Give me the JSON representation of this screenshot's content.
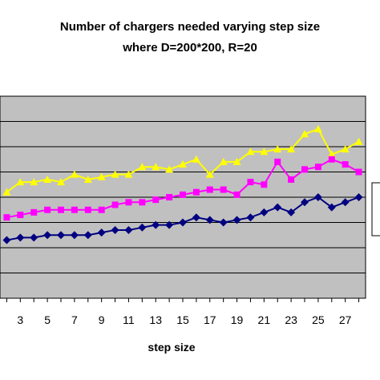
{
  "chart_data": {
    "type": "line",
    "title_line1": "Number of chargers needed varying step size",
    "title_line2": "where D=200*200, R=20",
    "xlabel": "step size",
    "ylabel": "",
    "x": [
      2,
      3,
      4,
      5,
      6,
      7,
      8,
      9,
      10,
      11,
      12,
      13,
      14,
      15,
      16,
      17,
      18,
      19,
      20,
      21,
      22,
      23,
      24,
      25,
      26,
      27,
      28
    ],
    "x_tick_labels": [
      "3",
      "5",
      "7",
      "9",
      "11",
      "13",
      "15",
      "17",
      "19",
      "21",
      "23",
      "25",
      "27"
    ],
    "x_tick_values": [
      3,
      5,
      7,
      9,
      11,
      13,
      15,
      17,
      19,
      21,
      23,
      25,
      27
    ],
    "xlim": [
      1.5,
      28.5
    ],
    "ylim": [
      0,
      8
    ],
    "grid": true,
    "plot_background": "#c0c0c0",
    "series": [
      {
        "color": "#ffff00",
        "marker": "triangle",
        "values": [
          4.2,
          4.6,
          4.6,
          4.7,
          4.6,
          4.9,
          4.7,
          4.8,
          4.9,
          4.9,
          5.2,
          5.2,
          5.1,
          5.3,
          5.5,
          4.9,
          5.4,
          5.4,
          5.8,
          5.8,
          5.9,
          5.9,
          6.5,
          6.7,
          5.7,
          5.9,
          6.2
        ]
      },
      {
        "color": "#ff00ff",
        "marker": "square",
        "values": [
          3.2,
          3.3,
          3.4,
          3.5,
          3.5,
          3.5,
          3.5,
          3.5,
          3.7,
          3.8,
          3.8,
          3.9,
          4.0,
          4.1,
          4.2,
          4.3,
          4.3,
          4.1,
          4.6,
          4.5,
          5.4,
          4.7,
          5.1,
          5.2,
          5.5,
          5.3,
          5.0
        ]
      },
      {
        "color": "#000080",
        "marker": "diamond",
        "values": [
          2.3,
          2.4,
          2.4,
          2.5,
          2.5,
          2.5,
          2.5,
          2.6,
          2.7,
          2.7,
          2.8,
          2.9,
          2.9,
          3.0,
          3.2,
          3.1,
          3.0,
          3.1,
          3.2,
          3.4,
          3.6,
          3.4,
          3.8,
          4.0,
          3.6,
          3.8,
          4.0
        ]
      }
    ]
  }
}
